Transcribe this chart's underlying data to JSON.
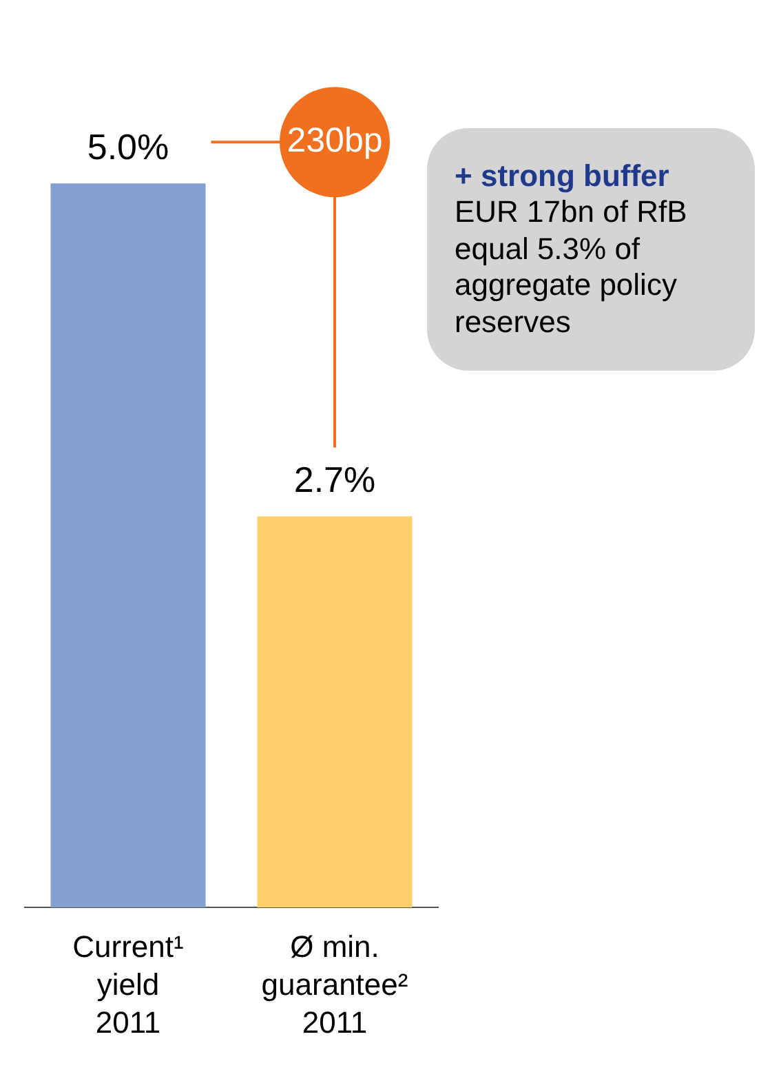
{
  "chart_data": {
    "type": "bar",
    "categories": [
      "Current¹\nyield\n2011",
      "Ø min.\nguarantee²\n2011"
    ],
    "values": [
      5.0,
      2.7
    ],
    "value_labels": [
      "5.0%",
      "2.7%"
    ],
    "colors": [
      "#829fce",
      "#fecf6b"
    ],
    "legend": false,
    "grid": false,
    "tick_labels": "x",
    "annotations": [
      "230bp",
      "+ strong buffer",
      "EUR 17bn of RfB equal 5.3% of aggregate policy reserves"
    ]
  }
}
